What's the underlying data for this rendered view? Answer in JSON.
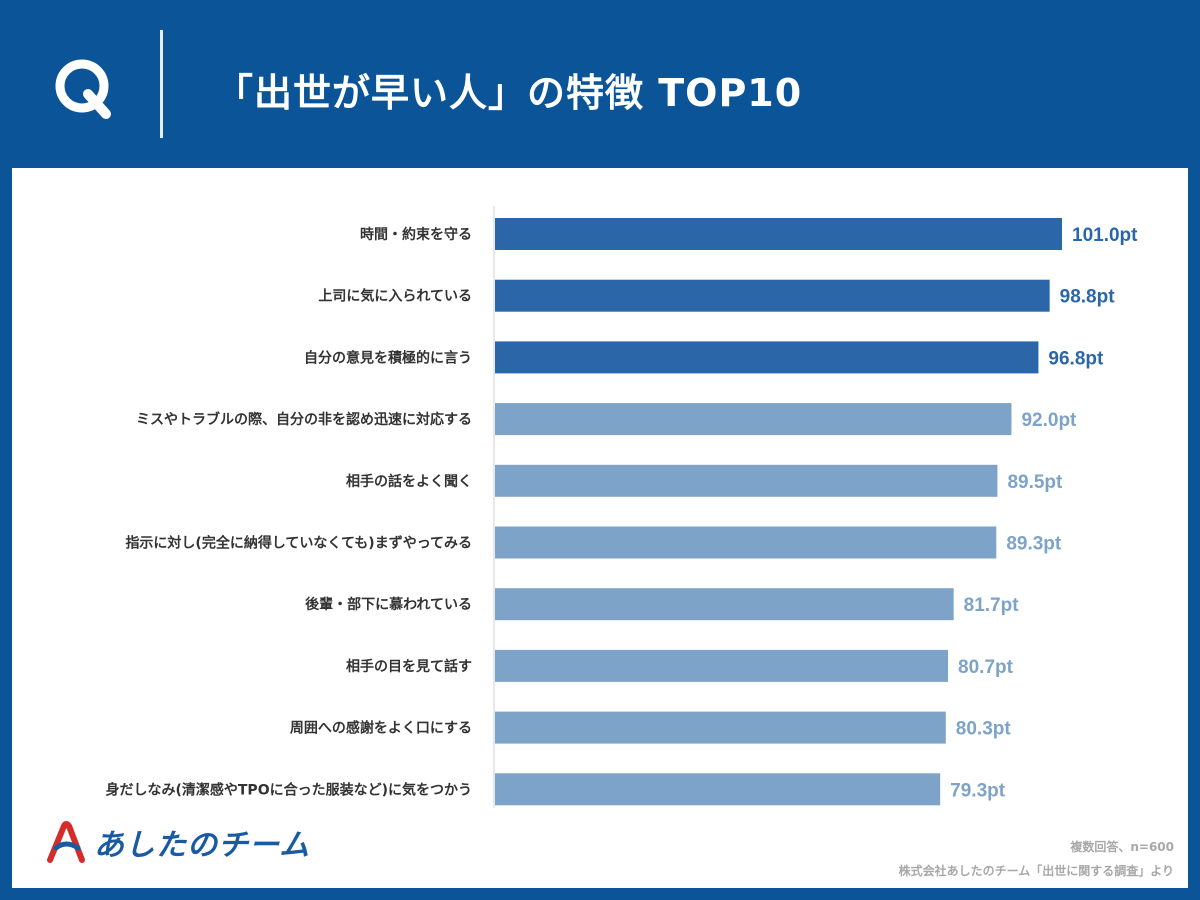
{
  "header": {
    "q_label": "Q",
    "title": "「出世が早い人」の特徴 TOP10"
  },
  "colors": {
    "background": "#0a5497",
    "bar_top": "#2a66a8",
    "bar_rest": "#7ea3c8",
    "label_top": "#2a66a8",
    "label_rest": "#7ea3c8"
  },
  "chart_data": {
    "type": "bar",
    "orientation": "horizontal",
    "categories": [
      "時間・約束を守る",
      "上司に気に入られている",
      "自分の意見を積極的に言う",
      "ミスやトラブルの際、自分の非を認め迅速に対応する",
      "相手の話をよく聞く",
      "指示に対し(完全に納得していなくても)まずやってみる",
      "後輩・部下に慕われている",
      "相手の目を見て話す",
      "周囲への感謝をよく口にする",
      "身だしなみ(清潔感やTPOに合った服装など)に気をつかう"
    ],
    "values": [
      101.0,
      98.8,
      96.8,
      92.0,
      89.5,
      89.3,
      81.7,
      80.7,
      80.3,
      79.3
    ],
    "value_labels": [
      "101.0pt",
      "98.8pt",
      "96.8pt",
      "92.0pt",
      "89.5pt",
      "89.3pt",
      "81.7pt",
      "80.7pt",
      "80.3pt",
      "79.3pt"
    ],
    "highlight_top_n": 3,
    "xlim": [
      0,
      101.0
    ]
  },
  "footer": {
    "logo_text": "あしたのチーム",
    "note_sample": "複数回答、n=600",
    "note_source": "株式会社あしたのチーム「出世に関する調査」より"
  }
}
